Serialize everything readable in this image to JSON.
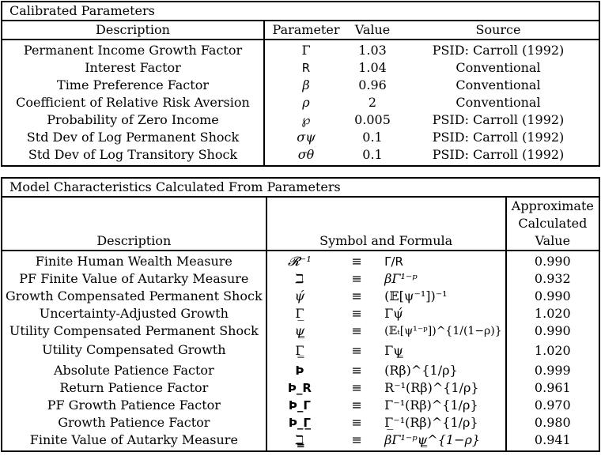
{
  "calibrated": {
    "caption": "Calibrated Parameters",
    "headers": {
      "description": "Description",
      "parameter": "Parameter",
      "value": "Value",
      "source": "Source"
    },
    "rows": [
      {
        "description": "Permanent Income Growth Factor",
        "parameter": "Γ",
        "value": "1.03",
        "source": "PSID: Carroll (1992)"
      },
      {
        "description": "Interest Factor",
        "parameter": "R",
        "value": "1.04",
        "source": "Conventional"
      },
      {
        "description": "Time Preference Factor",
        "parameter": "β",
        "value": "0.96",
        "source": "Conventional"
      },
      {
        "description": "Coefficient of Relative Risk Aversion",
        "parameter": "ρ",
        "value": "2",
        "source": "Conventional"
      },
      {
        "description": "Probability of Zero Income",
        "parameter": "℘",
        "value": "0.005",
        "source": "PSID: Carroll (1992)"
      },
      {
        "description": "Std Dev of Log Permanent Shock",
        "parameter": "σψ",
        "value": "0.1",
        "source": "PSID: Carroll (1992)"
      },
      {
        "description": "Std Dev of Log Transitory Shock",
        "parameter": "σθ",
        "value": "0.1",
        "source": "PSID: Carroll (1992)"
      }
    ]
  },
  "model": {
    "caption": "Model Characteristics Calculated From Parameters",
    "headers": {
      "approx_line1": "Approximate",
      "approx_line2": "Calculated",
      "approx_line3": "Value",
      "description": "Description",
      "symbol_formula": "Symbol and Formula"
    },
    "rows": [
      {
        "description": "Finite Human Wealth Measure",
        "symbol": "𝓡⁻¹",
        "equiv": "≡",
        "formula": "Γ/R",
        "value": "0.990"
      },
      {
        "description": "PF Finite Value of Autarky Measure",
        "symbol": "ℶ",
        "equiv": "≡",
        "formula": "βΓ¹⁻ᵖ",
        "value": "0.932"
      },
      {
        "description": "Growth Compensated Permanent Shock",
        "symbol": "ψ́",
        "equiv": "≡",
        "formula": "(𝔼[ψ⁻¹])⁻¹",
        "value": "0.990"
      },
      {
        "description": "Uncertainty-Adjusted Growth",
        "symbol": "Γ̲",
        "equiv": "≡",
        "formula": "Γψ́",
        "value": "1.020"
      },
      {
        "description": "Utility Compensated Permanent Shock",
        "symbol": "ψ̳",
        "equiv": "≡",
        "formula": "(𝔼ₜ[ψ¹⁻ᵖ])^{1/(1−ρ)}",
        "value": "0.990"
      },
      {
        "description": "Utility Compensated Growth",
        "symbol": "Γ̳",
        "equiv": "≡",
        "formula": "Γψ̳",
        "value": "1.020"
      },
      {
        "description": "Absolute Patience Factor",
        "symbol": "Þ",
        "equiv": "≡",
        "formula": "(Rβ)^{1/ρ}",
        "value": "0.999"
      },
      {
        "description": "Return Patience Factor",
        "symbol": "Þ_R",
        "equiv": "≡",
        "formula": "R⁻¹(Rβ)^{1/ρ}",
        "value": "0.961"
      },
      {
        "description": "PF Growth Patience Factor",
        "symbol": "Þ_Γ",
        "equiv": "≡",
        "formula": "Γ⁻¹(Rβ)^{1/ρ}",
        "value": "0.970"
      },
      {
        "description": "Growth Patience Factor",
        "symbol": "Þ_Γ̲",
        "equiv": "≡",
        "formula": "Γ̲⁻¹(Rβ)^{1/ρ}",
        "value": "0.980"
      },
      {
        "description": "Finite Value of Autarky Measure",
        "symbol": "ℶ̳",
        "equiv": "≡",
        "formula": "βΓ¹⁻ᵖψ̳^{1−ρ}",
        "value": "0.941"
      }
    ]
  }
}
